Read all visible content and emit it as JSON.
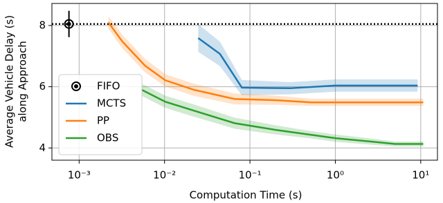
{
  "chart_data": {
    "type": "line",
    "xlabel": "Computation Time (s)",
    "ylabel": [
      "Average Vehicle Delay (s)",
      "along Approach"
    ],
    "xscale": "log",
    "xlim": [
      0.00048,
      15.7
    ],
    "ylim": [
      3.6,
      8.72
    ],
    "xticks": [
      {
        "value": 0.001,
        "label": "10⁻³"
      },
      {
        "value": 0.01,
        "label": "10⁻²"
      },
      {
        "value": 0.1,
        "label": "10⁻¹"
      },
      {
        "value": 1,
        "label": "10⁰"
      },
      {
        "value": 10,
        "label": "10¹"
      }
    ],
    "yticks": [
      4,
      6,
      8
    ],
    "grid": true,
    "legend": "lower left",
    "reference_line": {
      "y": 8.05
    },
    "series": [
      {
        "name": "FIFO",
        "kind": "point",
        "color": "#000000",
        "x": [
          0.00076
        ],
        "values": [
          8.05
        ],
        "error": [
          0.43
        ]
      },
      {
        "name": "MCTS",
        "color": "#1f77b4",
        "x": [
          0.0248,
          0.0446,
          0.0805,
          0.295,
          1.0,
          2.8,
          9.2
        ],
        "values": [
          7.59,
          7.07,
          5.97,
          5.95,
          6.04,
          6.04,
          6.04
        ],
        "error": [
          0.45,
          0.4,
          0.25,
          0.2,
          0.2,
          0.2,
          0.2
        ]
      },
      {
        "name": "PP",
        "color": "#ff7f0e",
        "x": [
          0.0022,
          0.0032,
          0.0059,
          0.0102,
          0.022,
          0.066,
          0.2,
          0.52,
          2.3,
          10.7
        ],
        "values": [
          8.1,
          7.48,
          6.69,
          6.21,
          5.9,
          5.6,
          5.56,
          5.49,
          5.49,
          5.49
        ],
        "error": [
          0.2,
          0.22,
          0.22,
          0.2,
          0.2,
          0.18,
          0.15,
          0.12,
          0.12,
          0.12
        ]
      },
      {
        "name": "OBS",
        "color": "#2ca02c",
        "x": [
          0.0054,
          0.0102,
          0.022,
          0.066,
          0.2,
          0.52,
          1.0,
          2.8,
          5.0,
          10.7
        ],
        "values": [
          5.9,
          5.51,
          5.22,
          4.81,
          4.59,
          4.43,
          4.32,
          4.2,
          4.13,
          4.13
        ],
        "error": [
          0.2,
          0.2,
          0.2,
          0.18,
          0.15,
          0.12,
          0.12,
          0.1,
          0.08,
          0.08
        ]
      }
    ]
  }
}
